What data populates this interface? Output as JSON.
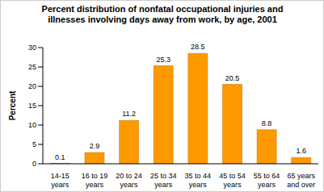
{
  "chart_data": {
    "type": "bar",
    "title": "Percent distribution of nonfatal occupational injuries and illnesses involving days away from work, by age, 2001",
    "y_label": "Percent",
    "categories": [
      "14-15 years",
      "16 to 19 years",
      "20 to 24 years",
      "25 to 34 years",
      "35 to 44 years",
      "45 to 54 years",
      "55 to 64 years",
      "65 years and over"
    ],
    "values": [
      0.1,
      2.9,
      11.2,
      25.3,
      28.5,
      20.5,
      8.8,
      1.6
    ],
    "color": "#ff9900",
    "ylim": [
      0,
      30
    ],
    "yticks": [
      0,
      5,
      10,
      15,
      20,
      25,
      30
    ],
    "grid": false,
    "data_labels": true
  }
}
